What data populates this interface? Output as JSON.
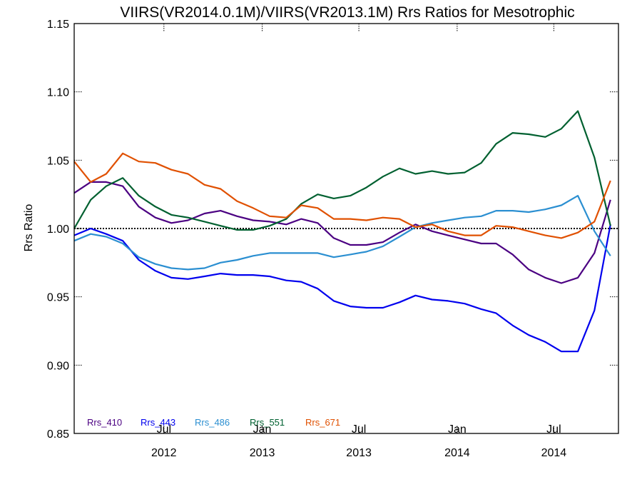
{
  "chart_data": {
    "type": "line",
    "title": "VIIRS(VR2014.0.1M)/VIIRS(VR2013.1M)  Rrs Ratios for Mesotrophic",
    "ylabel": "Rrs Ratio",
    "xlabel": "",
    "ylim": [
      0.85,
      1.15
    ],
    "yticks": [
      "0.85",
      "0.90",
      "0.95",
      "1.00",
      "1.05",
      "1.10",
      "1.15"
    ],
    "xlim": [
      "2012-01-15",
      "2014-10-30"
    ],
    "xticks": [
      {
        "date": "2012-07-01",
        "month": "Jul",
        "year": "2012"
      },
      {
        "date": "2013-01-01",
        "month": "Jan",
        "year": "2013"
      },
      {
        "date": "2013-07-01",
        "month": "Jul",
        "year": "2013"
      },
      {
        "date": "2014-01-01",
        "month": "Jan",
        "year": "2014"
      },
      {
        "date": "2014-07-01",
        "month": "Jul",
        "year": "2014"
      }
    ],
    "reference_line": 1.0,
    "x": [
      "2012-01-15",
      "2012-02-15",
      "2012-03-15",
      "2012-04-15",
      "2012-05-15",
      "2012-06-15",
      "2012-07-15",
      "2012-08-15",
      "2012-09-15",
      "2012-10-15",
      "2012-11-15",
      "2012-12-15",
      "2013-01-15",
      "2013-02-15",
      "2013-03-15",
      "2013-04-15",
      "2013-05-15",
      "2013-06-15",
      "2013-07-15",
      "2013-08-15",
      "2013-09-15",
      "2013-10-15",
      "2013-11-15",
      "2013-12-15",
      "2014-01-15",
      "2014-02-15",
      "2014-03-15",
      "2014-04-15",
      "2014-05-15",
      "2014-06-15",
      "2014-07-15",
      "2014-08-15",
      "2014-09-15",
      "2014-10-15"
    ],
    "series": [
      {
        "name": "Rrs_410",
        "color": "#4b0082",
        "values": [
          1.026,
          1.034,
          1.034,
          1.031,
          1.016,
          1.008,
          1.004,
          1.006,
          1.011,
          1.013,
          1.009,
          1.006,
          1.005,
          1.003,
          1.007,
          1.004,
          0.993,
          0.988,
          0.988,
          0.99,
          0.997,
          1.003,
          0.998,
          0.995,
          0.992,
          0.989,
          0.989,
          0.981,
          0.97,
          0.964,
          0.96,
          0.964,
          0.982,
          1.021
        ]
      },
      {
        "name": "Rrs_443",
        "color": "#0000ee",
        "values": [
          0.995,
          1.0,
          0.996,
          0.991,
          0.977,
          0.969,
          0.964,
          0.963,
          0.965,
          0.967,
          0.966,
          0.966,
          0.965,
          0.962,
          0.961,
          0.956,
          0.947,
          0.943,
          0.942,
          0.942,
          0.946,
          0.951,
          0.948,
          0.947,
          0.945,
          0.941,
          0.938,
          0.929,
          0.922,
          0.917,
          0.91,
          0.91,
          0.94,
          1.003
        ]
      },
      {
        "name": "Rrs_486",
        "color": "#2b8fd1",
        "values": [
          0.991,
          0.996,
          0.994,
          0.989,
          0.979,
          0.974,
          0.971,
          0.97,
          0.971,
          0.975,
          0.977,
          0.98,
          0.982,
          0.982,
          0.982,
          0.982,
          0.979,
          0.981,
          0.983,
          0.987,
          0.994,
          1.001,
          1.004,
          1.006,
          1.008,
          1.009,
          1.013,
          1.013,
          1.012,
          1.014,
          1.017,
          1.024,
          0.998,
          0.98
        ]
      },
      {
        "name": "Rrs_551",
        "color": "#006030",
        "values": [
          1.0,
          1.021,
          1.031,
          1.037,
          1.024,
          1.016,
          1.01,
          1.008,
          1.005,
          1.002,
          0.999,
          0.999,
          1.002,
          1.007,
          1.018,
          1.025,
          1.022,
          1.024,
          1.03,
          1.038,
          1.044,
          1.04,
          1.042,
          1.04,
          1.041,
          1.048,
          1.062,
          1.07,
          1.069,
          1.067,
          1.073,
          1.086,
          1.052,
          1.002
        ]
      },
      {
        "name": "Rrs_671",
        "color": "#e05000",
        "values": [
          1.049,
          1.034,
          1.04,
          1.055,
          1.049,
          1.048,
          1.043,
          1.04,
          1.032,
          1.029,
          1.02,
          1.015,
          1.009,
          1.008,
          1.017,
          1.015,
          1.007,
          1.007,
          1.006,
          1.008,
          1.007,
          1.001,
          1.003,
          0.998,
          0.995,
          0.995,
          1.002,
          1.001,
          0.998,
          0.995,
          0.993,
          0.997,
          1.005,
          1.035
        ]
      }
    ]
  }
}
